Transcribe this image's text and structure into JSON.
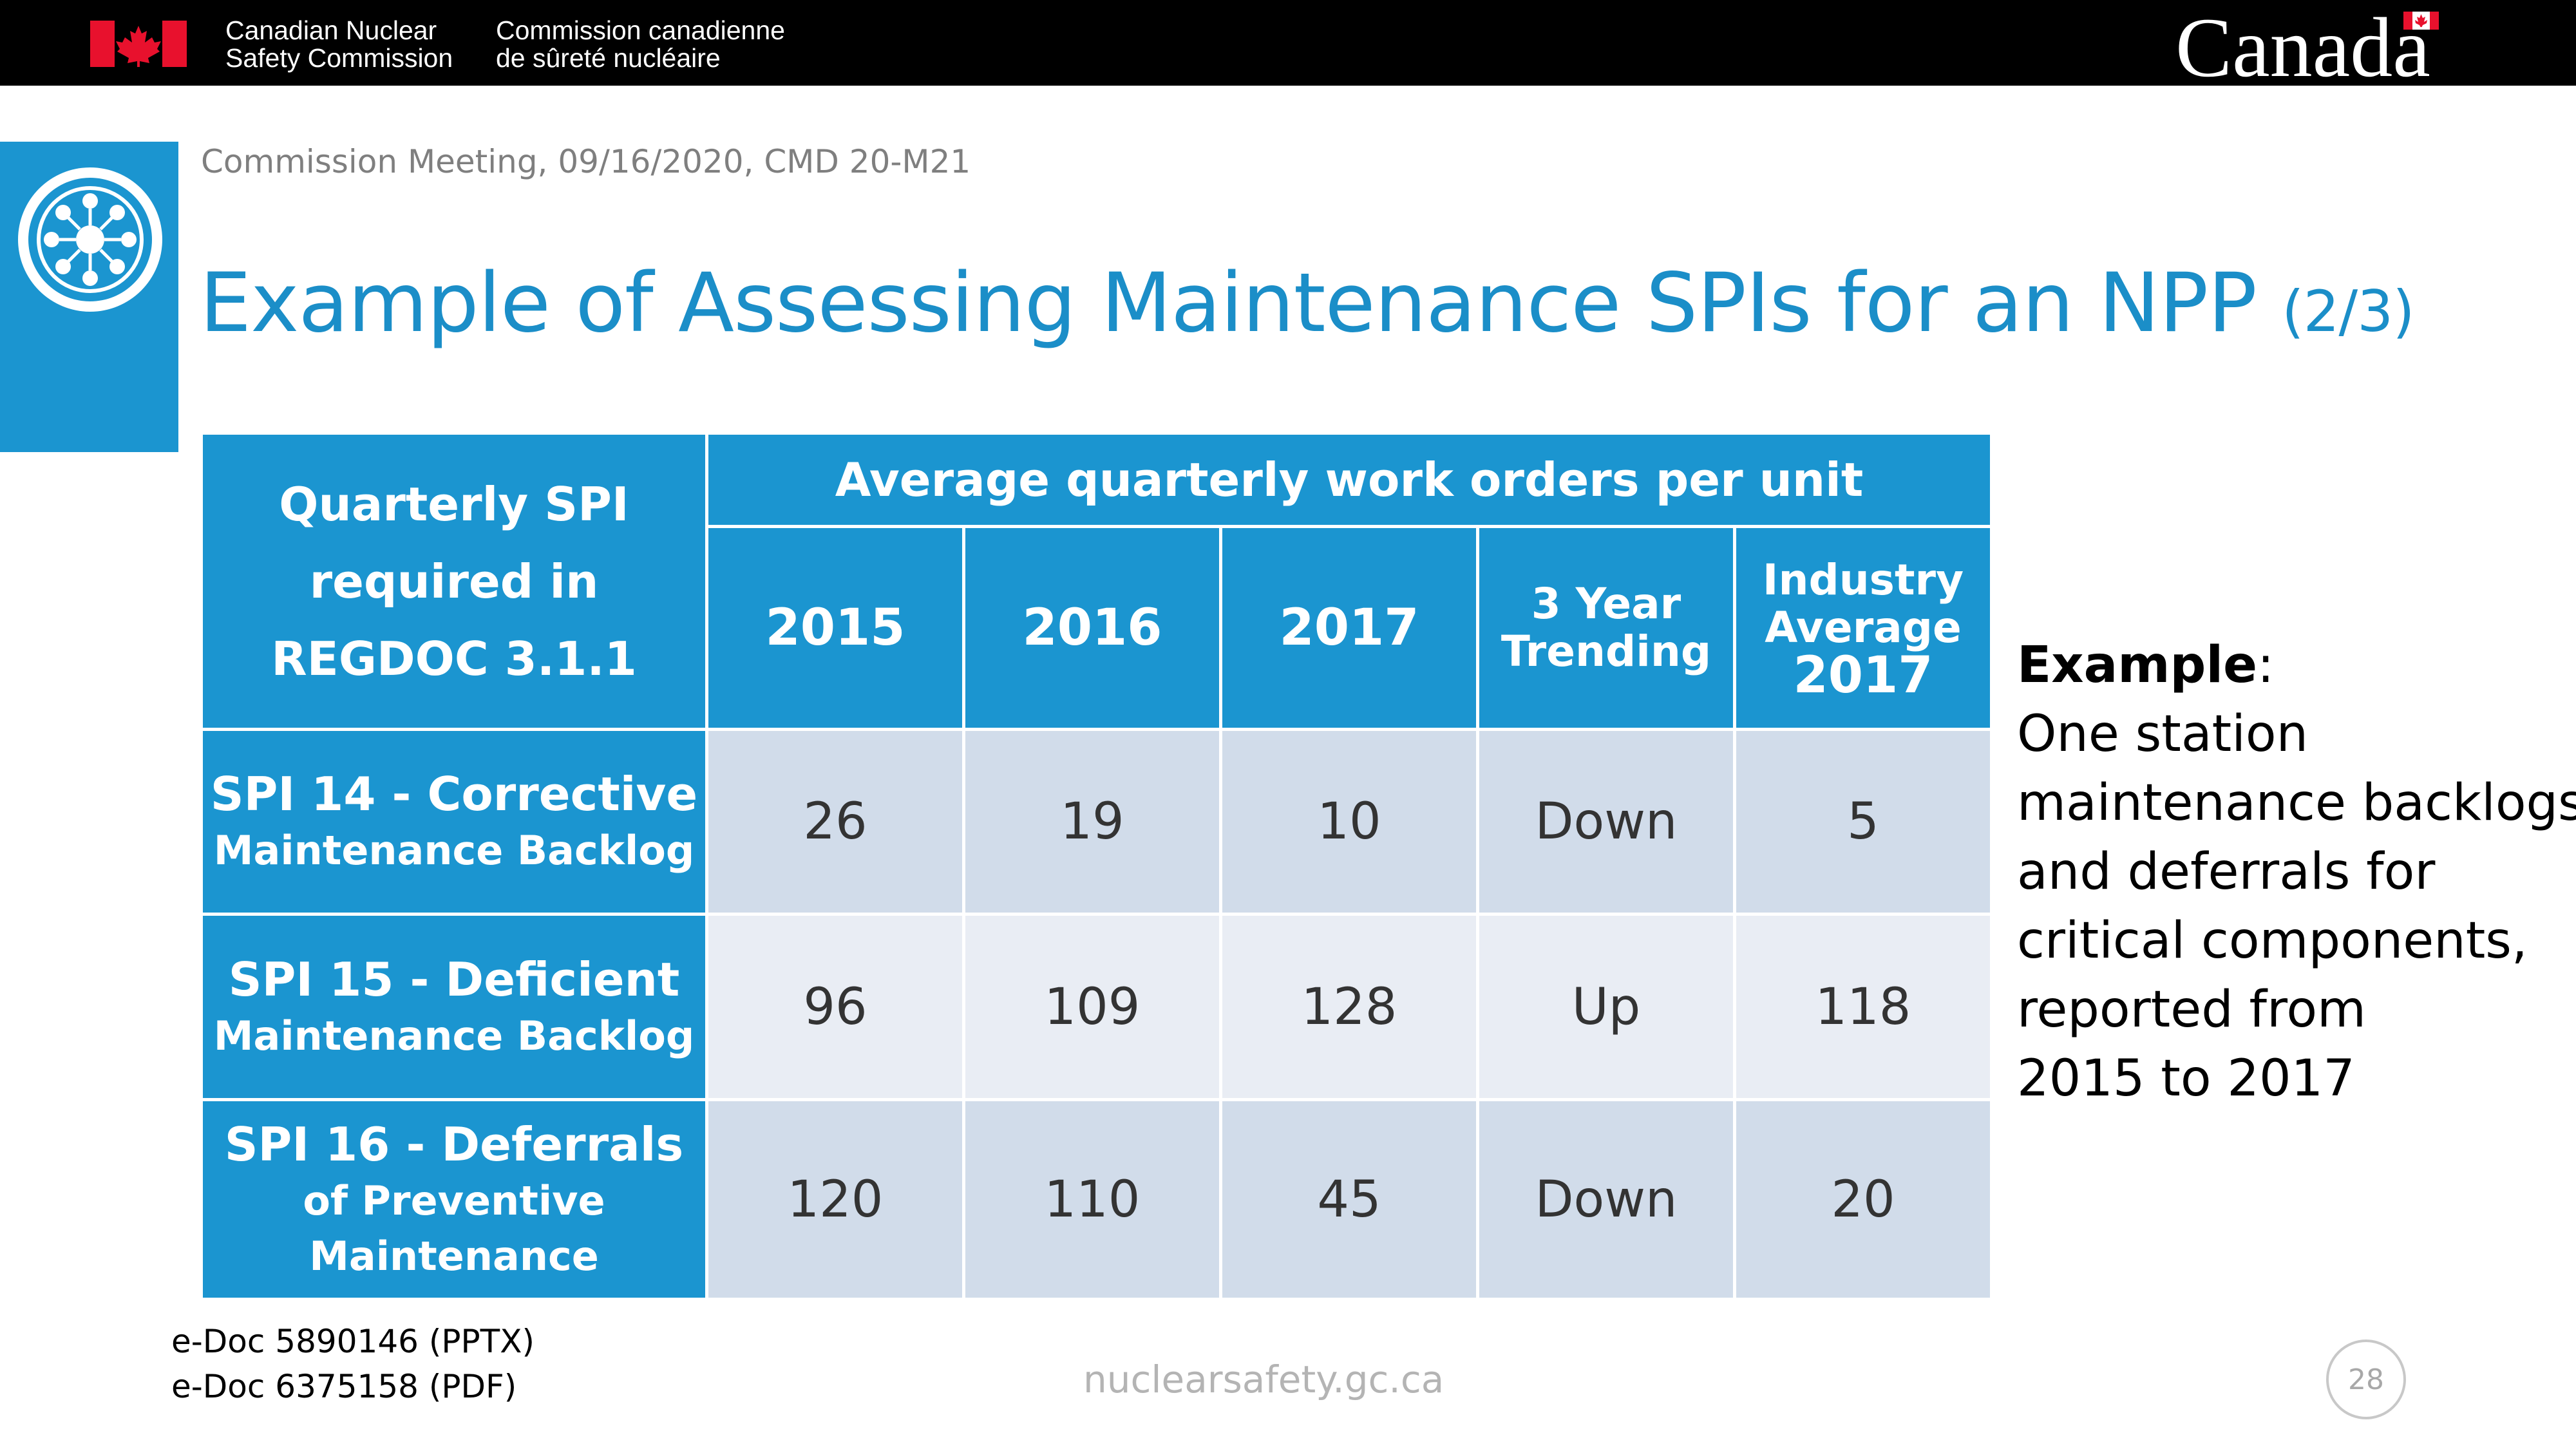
{
  "header": {
    "dept_en": [
      "Canadian Nuclear",
      "Safety Commission"
    ],
    "dept_fr": [
      "Commission canadienne",
      "de sûreté nucléaire"
    ],
    "wordmark": "Canada",
    "flag_color": "#e8112d"
  },
  "slide": {
    "meeting": "Commission Meeting, 09/16/2020, CMD 20-M21",
    "title": "Example of Assessing Maintenance SPIs for an NPP",
    "title_part": "(2/3)",
    "accent_color": "#1b95d0"
  },
  "table": {
    "corner_header": [
      "Quarterly SPI",
      "required in",
      "REGDOC 3.1.1"
    ],
    "group_header": "Average quarterly work orders per unit",
    "columns": [
      {
        "lines": [
          "2015"
        ]
      },
      {
        "lines": [
          "2016"
        ]
      },
      {
        "lines": [
          "2017"
        ]
      },
      {
        "lines": [
          "3 Year",
          "Trending"
        ]
      },
      {
        "lines": [
          "Industry",
          "Average",
          "2017"
        ]
      }
    ],
    "rows": [
      {
        "label_1": "SPI 14 - Corrective",
        "label_2": "Maintenance Backlog",
        "label_3": "",
        "values": [
          "26",
          "19",
          "10",
          "Down",
          "5"
        ]
      },
      {
        "label_1": "SPI 15 - Deficient",
        "label_2": "Maintenance Backlog",
        "label_3": "",
        "values": [
          "96",
          "109",
          "128",
          "Up",
          "118"
        ]
      },
      {
        "label_1": "SPI 16 - Deferrals",
        "label_2": "of Preventive",
        "label_3": "Maintenance",
        "values": [
          "120",
          "110",
          "45",
          "Down",
          "20"
        ]
      }
    ]
  },
  "example": {
    "heading": "Example",
    "colon": ":",
    "lines": [
      "One station",
      "maintenance backlogs",
      "and deferrals for",
      "critical components,",
      "reported from",
      "2015 to 2017"
    ]
  },
  "footer": {
    "edocs": [
      "e-Doc 5890146 (PPTX)",
      "e-Doc 6375158 (PDF)"
    ],
    "site": "nuclearsafety.gc.ca",
    "page": "28"
  }
}
